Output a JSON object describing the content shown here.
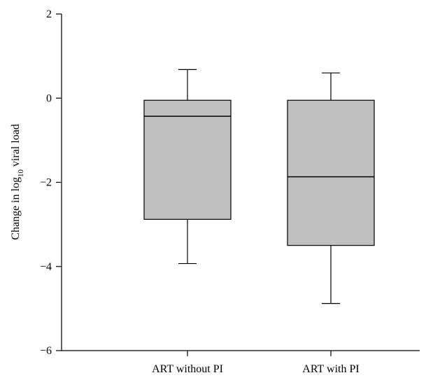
{
  "chart_data": {
    "type": "box",
    "ylabel": "Change in log",
    "ylabel_subscript": "10",
    "ylabel_suffix": " viral load",
    "ylim": [
      -6,
      2
    ],
    "yticks": [
      -6,
      -4,
      -2,
      0,
      2
    ],
    "ytick_labels": [
      "−6",
      "−4",
      "−2",
      "0",
      "2"
    ],
    "categories": [
      "ART without PI",
      "ART with PI"
    ],
    "boxes": [
      {
        "category": "ART without PI",
        "min": -3.93,
        "q1": -2.88,
        "median": -0.43,
        "q3": -0.05,
        "max": 0.68
      },
      {
        "category": "ART with PI",
        "min": -4.88,
        "q1": -3.5,
        "median": -1.87,
        "q3": -0.05,
        "max": 0.6
      }
    ],
    "colors": {
      "box_fill": "#c0c0c0",
      "stroke": "#000000"
    }
  }
}
